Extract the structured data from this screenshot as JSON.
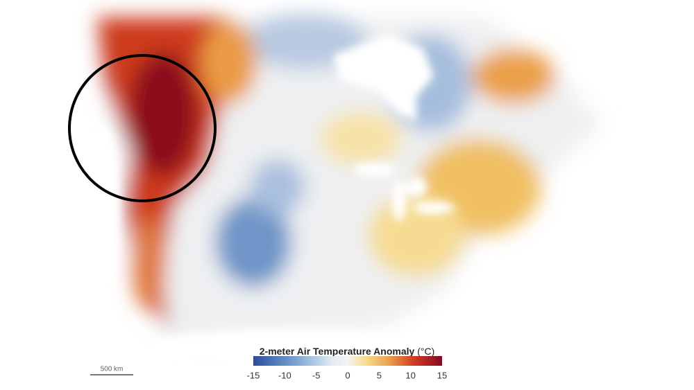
{
  "legend": {
    "title": "2-meter Air Temperature Anomaly",
    "unit": "(°C)",
    "lim": [
      -15,
      15
    ],
    "ticks": [
      -15,
      -10,
      -5,
      0,
      5,
      10,
      15
    ]
  },
  "scale_bar": {
    "label": "500 km"
  }
}
